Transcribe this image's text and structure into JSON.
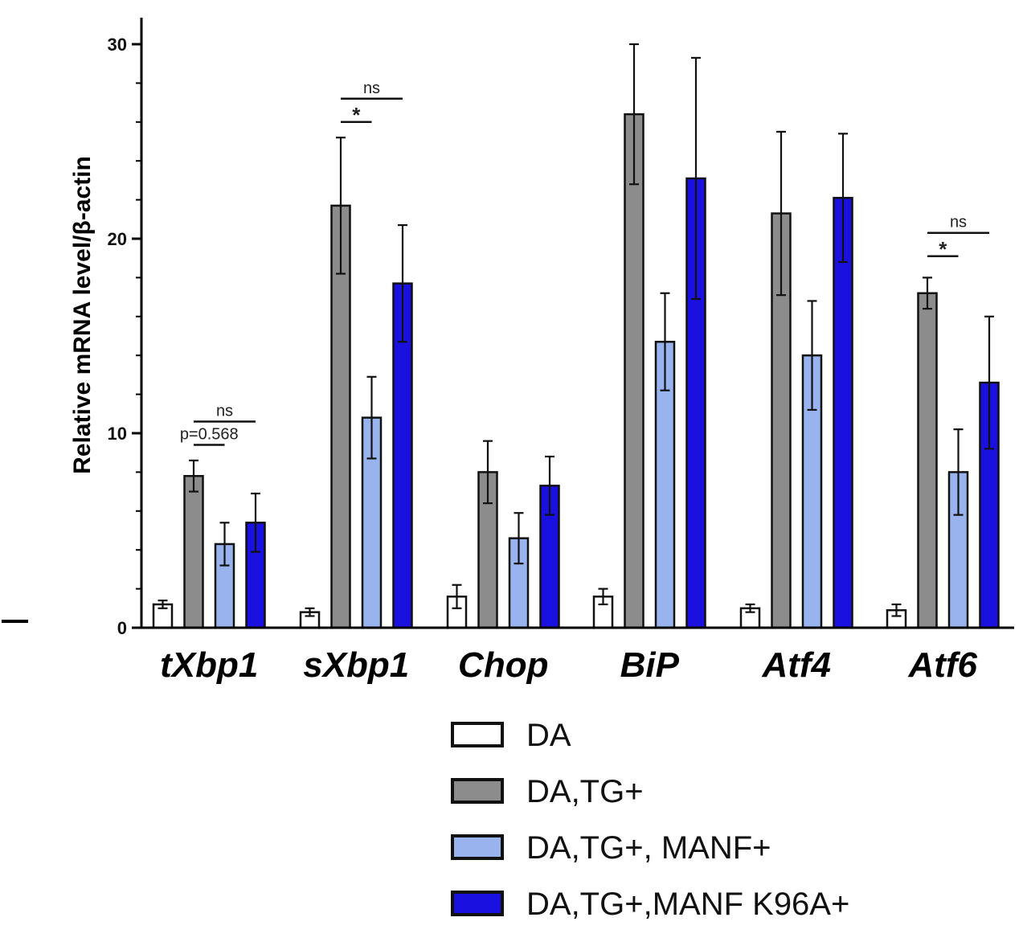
{
  "chart_data": {
    "type": "bar",
    "title": "",
    "xlabel": "",
    "ylabel": "Relative mRNA level/β-actin",
    "ylim": [
      0,
      30
    ],
    "yticks": [
      0,
      10,
      20,
      30
    ],
    "categories": [
      "tXbp1",
      "sXbp1",
      "Chop",
      "BiP",
      "Atf4",
      "Atf6"
    ],
    "series": [
      {
        "name": "DA",
        "color": "#ffffff",
        "values": [
          1.2,
          0.8,
          1.6,
          1.6,
          1.0,
          0.9
        ],
        "errors": [
          0.2,
          0.2,
          0.6,
          0.4,
          0.2,
          0.3
        ]
      },
      {
        "name": "DA,TG+",
        "color": "#8c8c8c",
        "values": [
          7.8,
          21.7,
          8.0,
          26.4,
          21.3,
          17.2
        ],
        "errors": [
          0.8,
          3.5,
          1.6,
          3.6,
          4.2,
          0.8
        ]
      },
      {
        "name": "DA,TG+, MANF+",
        "color": "#99b3ee",
        "values": [
          4.3,
          10.8,
          4.6,
          14.7,
          14.0,
          8.0
        ],
        "errors": [
          1.1,
          2.1,
          1.3,
          2.5,
          2.8,
          2.2
        ]
      },
      {
        "name": "DA,TG+,MANF K96A+",
        "color": "#1a10e0",
        "values": [
          5.4,
          17.7,
          7.3,
          23.1,
          22.1,
          12.6
        ],
        "errors": [
          1.5,
          3.0,
          1.5,
          6.2,
          3.3,
          3.4
        ]
      }
    ],
    "annotations": [
      {
        "category": "tXbp1",
        "from": "DA,TG+",
        "to": "DA,TG+,MANF K96A+",
        "text": "ns",
        "level": 10.6
      },
      {
        "category": "tXbp1",
        "from": "DA,TG+",
        "to": "DA,TG+, MANF+",
        "text": "p=0.568",
        "level": 9.4
      },
      {
        "category": "sXbp1",
        "from": "DA,TG+",
        "to": "DA,TG+,MANF K96A+",
        "text": "ns",
        "level": 27.2
      },
      {
        "category": "sXbp1",
        "from": "DA,TG+",
        "to": "DA,TG+, MANF+",
        "text": "*",
        "level": 26.0
      },
      {
        "category": "Atf6",
        "from": "DA,TG+",
        "to": "DA,TG+,MANF K96A+",
        "text": "ns",
        "level": 20.3
      },
      {
        "category": "Atf6",
        "from": "DA,TG+",
        "to": "DA,TG+, MANF+",
        "text": "*",
        "level": 19.1
      }
    ],
    "legend_position": "bottom-right"
  }
}
